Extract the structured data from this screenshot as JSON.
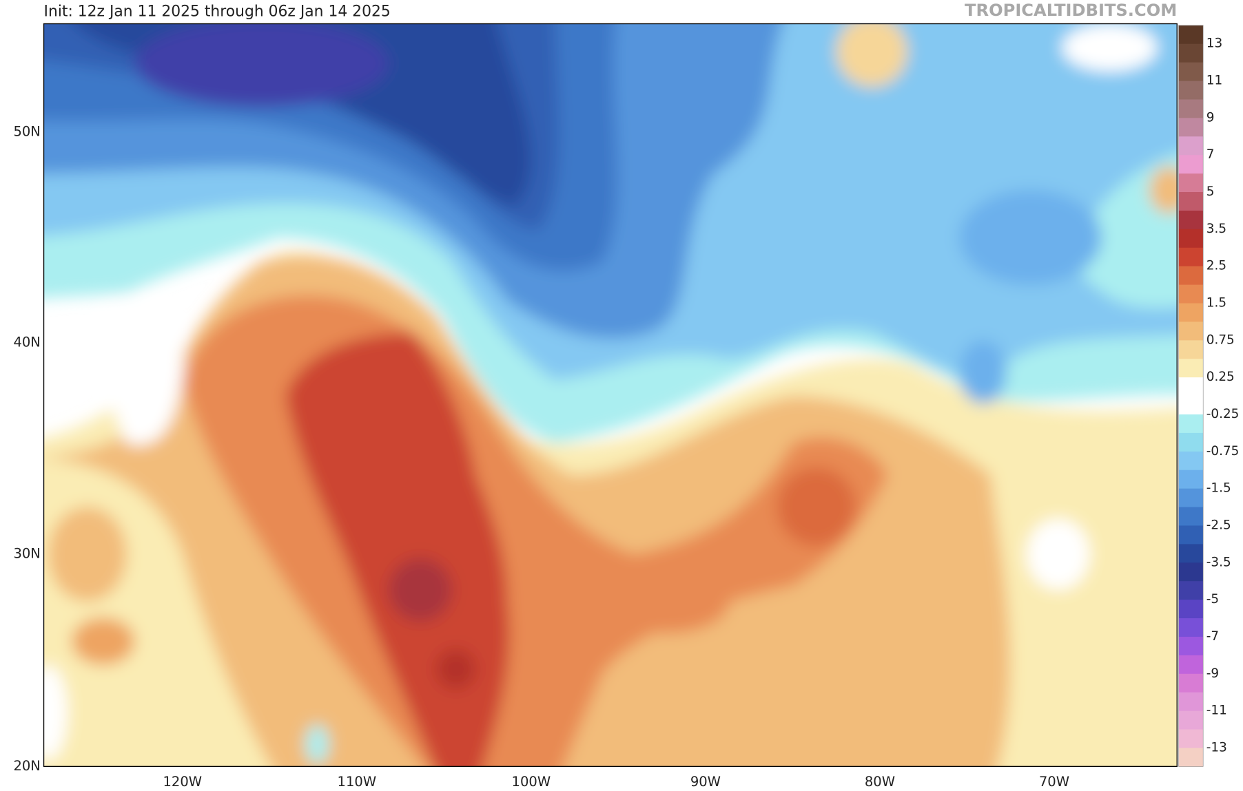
{
  "header": {
    "title": "Init: 12z Jan 11 2025 through 06z Jan 14 2025",
    "watermark": "TROPICALTIDBITS.COM"
  },
  "map": {
    "lat_labels": [
      "50N",
      "40N",
      "30N",
      "20N"
    ],
    "lon_labels": [
      "120W",
      "110W",
      "100W",
      "90W",
      "80W",
      "70W"
    ]
  },
  "legend": {
    "labels": [
      "13",
      "11",
      "9",
      "7",
      "5",
      "3.5",
      "2.5",
      "1.5",
      "0.75",
      "0.25",
      "-0.25",
      "-0.75",
      "-1.5",
      "-2.5",
      "-3.5",
      "-5",
      "-7",
      "-9",
      "-11",
      "-13"
    ],
    "colors": [
      "#5a3826",
      "#6a4634",
      "#805a4a",
      "#946c66",
      "#a87a80",
      "#c088a0",
      "#dca0cc",
      "#ec9cd0",
      "#d67c96",
      "#c05a6a",
      "#a8343e",
      "#b4302a",
      "#cc4430",
      "#dc6a3e",
      "#e88a52",
      "#eea462",
      "#f2bc7a",
      "#f6d698",
      "#faecb4",
      "#ffffff",
      "#ffffff",
      "#aaeef0",
      "#90dcee",
      "#84c8f2",
      "#6cb0ec",
      "#5494dc",
      "#3e78c8",
      "#3060b4",
      "#28489c",
      "#2c3890",
      "#4040a8",
      "#5a44c4",
      "#7850d8",
      "#9c58e0",
      "#c064dc",
      "#d87cd4",
      "#e096d8",
      "#e8a8d8",
      "#f0b8d4",
      "#f4d0c4"
    ]
  }
}
